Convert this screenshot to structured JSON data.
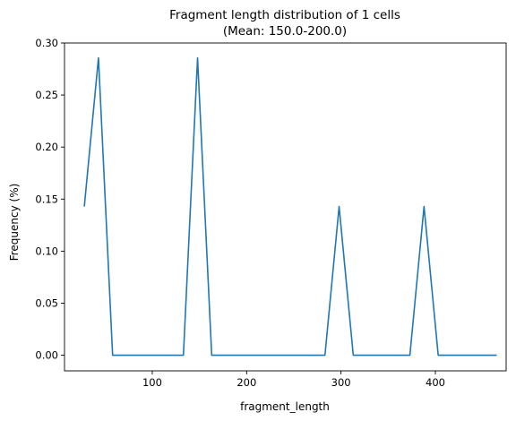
{
  "chart_data": {
    "type": "line",
    "title": "Fragment length distribution of 1 cells",
    "subtitle": "(Mean: 150.0-200.0)",
    "xlabel": "fragment_length",
    "ylabel": "Frequency (%)",
    "xlim": [
      7,
      475
    ],
    "ylim": [
      -0.015,
      0.3
    ],
    "xticks": [
      100,
      200,
      300,
      400
    ],
    "yticks": [
      0.0,
      0.05,
      0.1,
      0.15,
      0.2,
      0.25,
      0.3
    ],
    "ytick_labels": [
      "0.00",
      "0.05",
      "0.10",
      "0.15",
      "0.20",
      "0.25",
      "0.30"
    ],
    "grid": false,
    "series": [
      {
        "color": "#1f77b4",
        "x": [
          28,
          43,
          58,
          133,
          148,
          163,
          283,
          298,
          313,
          373,
          388,
          403,
          465
        ],
        "y": [
          0.1429,
          0.2857,
          0.0,
          0.0,
          0.2857,
          0.0,
          0.0,
          0.1429,
          0.0,
          0.0,
          0.1429,
          0.0,
          0.0
        ]
      }
    ]
  }
}
